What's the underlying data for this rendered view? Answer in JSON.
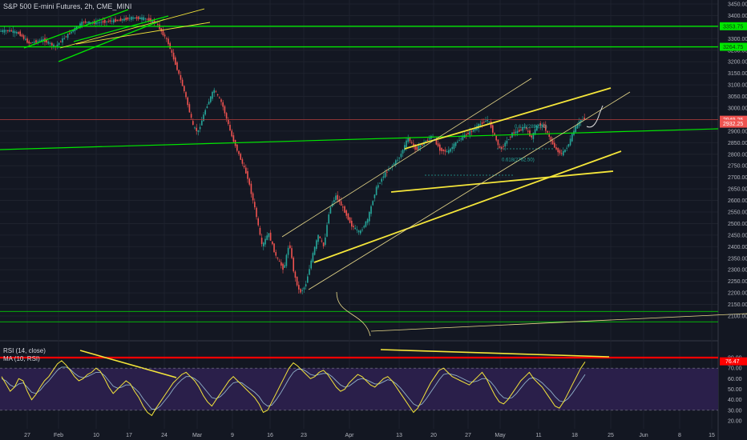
{
  "title": "S&P 500 E-mini Futures, 2h, CME_MINI",
  "rsi_legend": {
    "line1": "RSI (14, close)",
    "line2": "MA (10, RSI)"
  },
  "colors": {
    "background": "#131722",
    "up": "#26a69a",
    "down": "#ef5350",
    "green_line": "#00e600",
    "yellow_line": "#f5e63a",
    "thin_line": "#e8d98a",
    "red_line": "#ff0000",
    "rsi_fill": "#2a1f4a",
    "rsi_line": "#f5e63a",
    "rsi_ma": "#8fb1c9"
  },
  "chart_data": [
    {
      "type": "candlestick",
      "title": "S&P 500 E-mini Futures, 2h, CME_MINI",
      "xlabel": "",
      "ylabel": "",
      "ylim": [
        2080,
        3480
      ],
      "x_ticks": [
        "27",
        "Feb",
        "10",
        "17",
        "24",
        "Mar",
        "9",
        "16",
        "23",
        "Apr",
        "13",
        "20",
        "27",
        "May",
        "11",
        "18",
        "25",
        "Jun",
        "8",
        "15"
      ],
      "y_ticks": [
        2100,
        2150,
        2200,
        2250,
        2300,
        2350,
        2400,
        2450,
        2500,
        2550,
        2600,
        2650,
        2700,
        2750,
        2800,
        2850,
        2900,
        2950,
        3000,
        3050,
        3100,
        3150,
        3200,
        3250,
        3300,
        3350,
        3400,
        3450
      ],
      "series": [
        {
          "name": "",
          "points": [
            [
              0,
              3333
            ],
            [
              13,
              3335
            ],
            [
              25,
              3322
            ],
            [
              37,
              3280
            ],
            [
              55,
              3295
            ],
            [
              70,
              3265
            ],
            [
              80,
              3300
            ],
            [
              95,
              3345
            ],
            [
              105,
              3372
            ],
            [
              120,
              3368
            ],
            [
              135,
              3375
            ],
            [
              150,
              3380
            ],
            [
              165,
              3390
            ],
            [
              180,
              3388
            ],
            [
              195,
              3372
            ],
            [
              210,
              3290
            ],
            [
              222,
              3170
            ],
            [
              232,
              3060
            ],
            [
              242,
              2920
            ],
            [
              248,
              2895
            ],
            [
              258,
              3000
            ],
            [
              268,
              3080
            ],
            [
              278,
              3020
            ],
            [
              290,
              2880
            ],
            [
              300,
              2790
            ],
            [
              310,
              2700
            ],
            [
              320,
              2550
            ],
            [
              328,
              2400
            ],
            [
              336,
              2460
            ],
            [
              345,
              2360
            ],
            [
              355,
              2300
            ],
            [
              362,
              2420
            ],
            [
              368,
              2280
            ],
            [
              375,
              2200
            ],
            [
              382,
              2230
            ],
            [
              390,
              2350
            ],
            [
              398,
              2450
            ],
            [
              405,
              2400
            ],
            [
              412,
              2560
            ],
            [
              420,
              2620
            ],
            [
              430,
              2560
            ],
            [
              440,
              2490
            ],
            [
              450,
              2460
            ],
            [
              460,
              2520
            ],
            [
              470,
              2650
            ],
            [
              480,
              2710
            ],
            [
              490,
              2750
            ],
            [
              500,
              2790
            ],
            [
              510,
              2870
            ],
            [
              520,
              2820
            ],
            [
              530,
              2850
            ],
            [
              540,
              2880
            ],
            [
              550,
              2820
            ],
            [
              560,
              2810
            ],
            [
              570,
              2850
            ],
            [
              580,
              2880
            ],
            [
              590,
              2900
            ],
            [
              600,
              2930
            ],
            [
              610,
              2950
            ],
            [
              618,
              2880
            ],
            [
              625,
              2820
            ],
            [
              632,
              2850
            ],
            [
              640,
              2890
            ],
            [
              648,
              2900
            ],
            [
              656,
              2920
            ],
            [
              664,
              2870
            ],
            [
              672,
              2930
            ],
            [
              680,
              2920
            ],
            [
              688,
              2860
            ],
            [
              695,
              2820
            ],
            [
              702,
              2800
            ],
            [
              710,
              2840
            ],
            [
              718,
              2910
            ],
            [
              726,
              2950
            ],
            [
              730,
              2955
            ]
          ]
        }
      ],
      "price_labels": [
        "3450.00",
        "3400.00",
        "3353.75",
        "3300.00",
        "3264.75",
        "3250.00",
        "3200.00",
        "3150.00",
        "3100.00",
        "3050.00",
        "3000.00",
        "2949.25",
        "2932.25",
        "2900.00",
        "2850.00",
        "2800.00",
        "2750.00",
        "2700.00",
        "2650.00",
        "2600.00",
        "2550.00",
        "2500.00",
        "2450.00",
        "2400.00",
        "2350.00",
        "2300.00",
        "2250.00",
        "2200.00",
        "2150.00",
        "2100.00"
      ],
      "badges": [
        {
          "text": "3353.75",
          "price": 3353.75,
          "color": "#00e600"
        },
        {
          "text": "3264.75",
          "price": 3264.75,
          "color": "#00e600"
        },
        {
          "text": "2949.25",
          "price": 2949.25,
          "color": "#ef5350"
        },
        {
          "text": "2932.25",
          "price": 2932.25,
          "color": "#ef5350"
        }
      ],
      "current_price": 2949.25,
      "fib_labels": [
        {
          "text": "0.618(2899.00)",
          "price": 2899
        },
        {
          "text": "0.618(2762.50)",
          "price": 2762.5
        }
      ]
    },
    {
      "type": "line",
      "title": "RSI (14, close)",
      "ylim": [
        15,
        85
      ],
      "y_ticks": [
        20.0,
        30.0,
        40.0,
        50.0,
        60.0,
        70.0,
        80.0
      ],
      "y_tick_labels": [
        "20.00",
        "30.00",
        "40.00",
        "50.00",
        "60.00",
        "70.00",
        "80.00"
      ],
      "levels": [
        30,
        70
      ],
      "badge": "76.47",
      "series": [
        {
          "name": "",
          "values": [
            62,
            55,
            48,
            52,
            60,
            58,
            48,
            40,
            45,
            52,
            58,
            62,
            68,
            74,
            77,
            73,
            68,
            62,
            58,
            60,
            64,
            66,
            70,
            67,
            60,
            52,
            46,
            50,
            54,
            58,
            55,
            48,
            42,
            34,
            28,
            25,
            32,
            38,
            44,
            50,
            56,
            60,
            64,
            66,
            62,
            58,
            52,
            44,
            38,
            34,
            40,
            46,
            52,
            58,
            62,
            58,
            54,
            50,
            46,
            42,
            36,
            28,
            30,
            38,
            46,
            54,
            62,
            70,
            75,
            72,
            68,
            64,
            60,
            62,
            66,
            68,
            64,
            58,
            52,
            48,
            50,
            56,
            60,
            64,
            62,
            58,
            54,
            52,
            56,
            60,
            62,
            58,
            52,
            46,
            40,
            34,
            28,
            32,
            40,
            48,
            56,
            62,
            68,
            70,
            66,
            62,
            60,
            58,
            56,
            54,
            58,
            62,
            66,
            60,
            52,
            44,
            38,
            36,
            40,
            46,
            52,
            58,
            62,
            66,
            60,
            56,
            52,
            46,
            40,
            34,
            32,
            38,
            46,
            54,
            62,
            70,
            76
          ]
        },
        {
          "name": "",
          "values": [
            60,
            58,
            54,
            52,
            55,
            56,
            52,
            47,
            46,
            49,
            54,
            58,
            63,
            68,
            71,
            71,
            69,
            65,
            62,
            61,
            62,
            64,
            66,
            66,
            63,
            58,
            53,
            51,
            52,
            54,
            54,
            51,
            47,
            41,
            36,
            31,
            31,
            34,
            39,
            44,
            50,
            55,
            59,
            62,
            62,
            60,
            57,
            52,
            47,
            42,
            41,
            43,
            47,
            52,
            56,
            57,
            56,
            53,
            50,
            47,
            43,
            37,
            34,
            35,
            40,
            46,
            53,
            60,
            66,
            69,
            69,
            67,
            64,
            63,
            64,
            65,
            65,
            62,
            58,
            54,
            52,
            53,
            56,
            59,
            60,
            59,
            57,
            55,
            55,
            57,
            59,
            58,
            55,
            51,
            46,
            41,
            36,
            34,
            36,
            41,
            47,
            53,
            59,
            64,
            65,
            64,
            63,
            61,
            59,
            57,
            57,
            58,
            60,
            60,
            57,
            52,
            46,
            42,
            41,
            42,
            46,
            51,
            56,
            60,
            61,
            59,
            56,
            52,
            48,
            43,
            39,
            38,
            41,
            46,
            52,
            58,
            64
          ]
        }
      ],
      "x_ticks": [
        "27",
        "Feb",
        "10",
        "17",
        "24",
        "Mar",
        "9",
        "16",
        "23",
        "Apr",
        "13",
        "20",
        "27",
        "May",
        "11",
        "18",
        "25",
        "Jun",
        "8",
        "15"
      ]
    }
  ]
}
